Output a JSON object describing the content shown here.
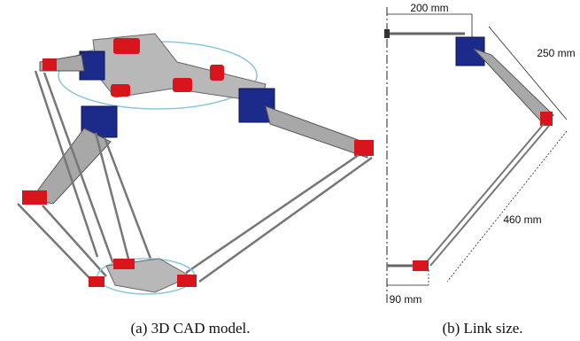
{
  "figure": {
    "panels": [
      {
        "caption": "(a) 3D CAD model."
      },
      {
        "caption": "(b) Link size.",
        "dimensions": [
          "200 mm",
          "250 mm",
          "460 mm",
          "90 mm"
        ]
      }
    ]
  }
}
